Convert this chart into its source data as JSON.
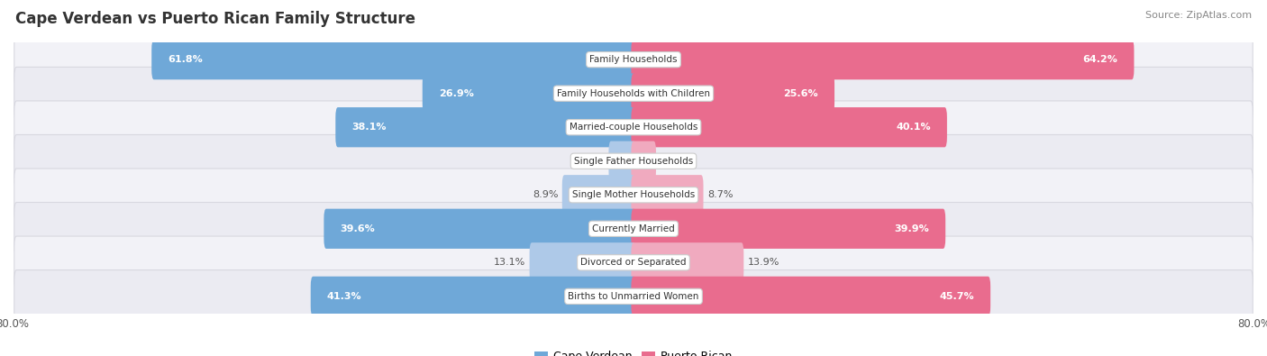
{
  "title": "Cape Verdean vs Puerto Rican Family Structure",
  "source": "Source: ZipAtlas.com",
  "categories": [
    "Family Households",
    "Family Households with Children",
    "Married-couple Households",
    "Single Father Households",
    "Single Mother Households",
    "Currently Married",
    "Divorced or Separated",
    "Births to Unmarried Women"
  ],
  "cape_verdean": [
    61.8,
    26.9,
    38.1,
    2.9,
    8.9,
    39.6,
    13.1,
    41.3
  ],
  "puerto_rican": [
    64.2,
    25.6,
    40.1,
    2.6,
    8.7,
    39.9,
    13.9,
    45.7
  ],
  "x_max": 80.0,
  "blue_dark": "#6fa8d8",
  "blue_light": "#aec9e8",
  "pink_dark": "#e96c8e",
  "pink_light": "#f0aabf",
  "bg_row_odd": "#f2f2f7",
  "bg_row_even": "#ebebf2",
  "row_edge_color": "#d8d8e0",
  "bar_height": 0.58,
  "threshold": 20.0,
  "legend_blue": "#6fa8d8",
  "legend_pink": "#e96c8e",
  "title_color": "#333333",
  "source_color": "#888888",
  "label_color": "#444444",
  "val_color_inside": "#ffffff",
  "val_color_outside": "#555555"
}
